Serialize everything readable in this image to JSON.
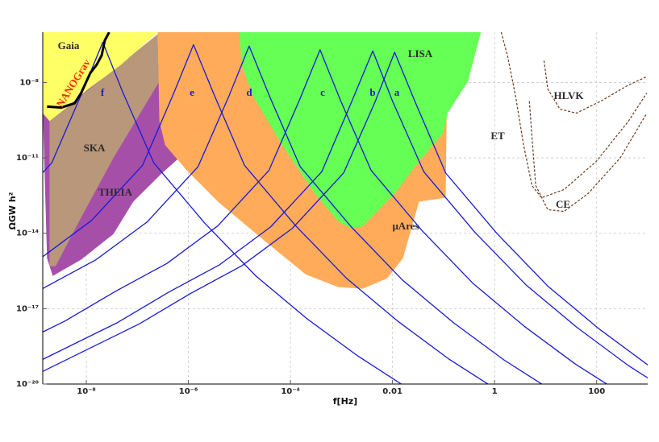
{
  "chart_data": {
    "type": "line",
    "xlabel": "f[Hz]",
    "ylabel": "ΩGW h²",
    "xscale": "log",
    "yscale": "log",
    "xlim": [
      1.4e-09,
      1000
    ],
    "ylim": [
      1e-20,
      1e-06
    ],
    "xticks": [
      {
        "value": 1e-08,
        "label": "10⁻⁸"
      },
      {
        "value": 1e-06,
        "label": "10⁻⁶"
      },
      {
        "value": 0.0001,
        "label": "10⁻⁴"
      },
      0.01,
      1,
      100
    ],
    "yticks": [
      {
        "value": 1e-20,
        "label": "10⁻²⁰"
      },
      {
        "value": 1e-17,
        "label": "10⁻¹⁷"
      },
      {
        "value": 1e-14,
        "label": "10⁻¹⁴"
      },
      {
        "value": 1e-11,
        "label": "10⁻¹¹"
      },
      {
        "value": 1e-08,
        "label": "10⁻⁸"
      }
    ],
    "grid": true,
    "regions": [
      {
        "name": "THEIA",
        "color": "#a64fa9",
        "x": [
          1.4e-09,
          2.5e-07,
          6.6e-07,
          3e-07,
          8.3e-08,
          3.4e-08,
          7.9e-09,
          2.2e-09,
          1.7e-09
        ],
        "y": [
          8.7e-10,
          2.2e-07,
          1e-11,
          2.4e-12,
          1.8e-13,
          9.3e-15,
          8.9e-16,
          2e-16,
          1e-15
        ]
      },
      {
        "name": "SKA",
        "color": "#b8977a",
        "x": [
          1.9e-09,
          2.5e-07,
          2.7e-07,
          3.4e-08,
          7.9e-09,
          2.5e-09,
          1.9e-09
        ],
        "y": [
          2.9e-10,
          8.3e-07,
          1.1e-08,
          1e-11,
          4.2e-14,
          4.9e-16,
          4.9e-16
        ]
      },
      {
        "name": "Gaia",
        "color": "#ffff66",
        "x": [
          1.4e-09,
          2.5e-07,
          4.8e-08,
          1.1e-08,
          3.8e-09,
          1.9e-09,
          1.4e-09
        ],
        "y": [
          1e-06,
          1e-06,
          5.1e-08,
          5.5e-09,
          8.7e-10,
          2.9e-10,
          6e-10
        ]
      },
      {
        "name": "μAres",
        "color": "#ffab5a",
        "x": [
          2.5e-07,
          0.12,
          0.11,
          0.033,
          0.016,
          0.0078,
          0.0026,
          0.00087,
          0.0002,
          3.3e-05,
          3.8e-06,
          8.9e-07,
          3.5e-07,
          2.7e-07
        ],
        "y": [
          1e-06,
          1e-06,
          2.6e-13,
          1.8e-13,
          1e-15,
          1.6e-16,
          6.2e-17,
          7.2e-17,
          2.3e-16,
          4.5e-15,
          1.8e-13,
          3.5e-12,
          3.2e-11,
          2.9e-10
        ]
      },
      {
        "name": "LISA",
        "color": "#66ff55",
        "x": [
          1e-05,
          0.54,
          0.3,
          0.12,
          0.098,
          0.033,
          0.011,
          0.0045,
          0.0026,
          0.0015,
          0.00087,
          0.0003,
          6.9e-05,
          1.9e-05,
          1.1e-05
        ],
        "y": [
          1e-06,
          1e-06,
          1.1e-08,
          6e-10,
          9.5e-11,
          7.2e-12,
          3.8e-13,
          6e-14,
          1.9e-14,
          1.6e-14,
          2.9e-14,
          3.8e-13,
          3.2e-11,
          2.6e-09,
          5.1e-08
        ]
      }
    ],
    "series": [
      {
        "name": "a",
        "color": "#1a1ad6",
        "x": [
          1.1e-09,
          1.1e-07,
          1.1e-06,
          1.1e-05,
          0.00011,
          0.0011,
          0.0045,
          0.011,
          0.028,
          0.11,
          1.1,
          11,
          110,
          1100
        ],
        "values": [
          2.5e-20,
          2.5e-18,
          4e-17,
          5e-16,
          1.6e-14,
          2.5e-12,
          1.6e-09,
          1.6e-07,
          1.6e-09,
          2.5e-12,
          1e-14,
          7.9e-17,
          1.6e-18,
          5e-20
        ]
      },
      {
        "name": "b",
        "color": "#1a1ad6",
        "x": [
          4.1e-10,
          4.1e-08,
          4.1e-07,
          4.1e-06,
          4.1e-05,
          0.00041,
          0.0016,
          0.0041,
          0.01,
          0.041,
          0.41,
          4.1,
          41,
          410,
          4100
        ],
        "values": [
          2.8e-20,
          2.8e-18,
          4.5e-17,
          5.6e-16,
          1.8e-14,
          2.8e-12,
          1.8e-09,
          1.8e-07,
          1.8e-09,
          2.8e-12,
          1.1e-14,
          8.9e-17,
          1.8e-18,
          5.6e-20,
          2.8e-21
        ]
      },
      {
        "name": "c",
        "color": "#1a1ad6",
        "x": [
          3.8e-11,
          3.8e-09,
          3.8e-08,
          3.8e-07,
          3.8e-06,
          3.8e-05,
          0.00015,
          0.00038,
          0.00095,
          0.0038,
          0.038,
          0.38,
          3.8,
          38,
          380
        ],
        "values": [
          3.2e-20,
          3.2e-18,
          5e-17,
          6.3e-16,
          2e-14,
          3.2e-12,
          2e-09,
          2e-07,
          2e-09,
          3.2e-12,
          1.26e-14,
          1e-16,
          2e-18,
          6.3e-20,
          3.2e-21
        ]
      },
      {
        "name": "d",
        "color": "#1a1ad6",
        "x": [
          1.55e-10,
          1.55e-09,
          1.55e-08,
          1.55e-07,
          1.55e-06,
          6.2e-06,
          1.55e-05,
          3.9e-05,
          0.000155,
          0.00155,
          0.0155,
          0.155,
          1.55,
          15.5
        ],
        "values": [
          4.5e-18,
          7.1e-17,
          8.9e-16,
          2.8e-14,
          4.5e-12,
          2.8e-09,
          2.8e-07,
          2.8e-09,
          4.5e-12,
          1.8e-14,
          1.4e-16,
          2.8e-18,
          8.9e-20,
          4.5e-21
        ]
      },
      {
        "name": "e",
        "color": "#1a1ad6",
        "x": [
          1.26e-09,
          1.26e-08,
          1.26e-07,
          5e-07,
          1.26e-06,
          3.2e-06,
          1.26e-05,
          0.000126,
          0.00126,
          0.0126,
          0.126,
          1.26
        ],
        "values": [
          1e-15,
          3.2e-14,
          5e-12,
          3.2e-09,
          3.2e-07,
          3.2e-09,
          5e-12,
          2e-14,
          1.6e-16,
          3.2e-18,
          1e-19,
          5e-21
        ]
      },
      {
        "name": "f",
        "color": "#1a1ad6",
        "x": [
          2.1e-10,
          2.1e-09,
          8.3e-09,
          2.1e-08,
          5.2e-08,
          2.1e-07,
          2.1e-06,
          2.1e-05,
          0.00021,
          0.0021,
          0.021
        ],
        "values": [
          4e-14,
          6.3e-12,
          4e-09,
          4e-07,
          4e-09,
          6.3e-12,
          2.5e-14,
          2e-16,
          4e-18,
          1.3e-19,
          6.3e-21
        ]
      },
      {
        "name": "ET",
        "color": "#6b3a1a",
        "dashed": true,
        "x": [
          1.35,
          1.8,
          2.6,
          3.7,
          5.4,
          8.3,
          23,
          98,
          420,
          960
        ],
        "values": [
          1e-06,
          1.1e-07,
          2.6e-09,
          3.2e-11,
          7.9e-13,
          2.6e-13,
          5.5e-13,
          7.2e-12,
          2.9e-10,
          3.8e-09
        ]
      },
      {
        "name": "HLVK",
        "color": "#6b3a1a",
        "dashed": true,
        "x": [
          9.3,
          11,
          19,
          40,
          120,
          420,
          960
        ],
        "values": [
          7.4e-08,
          5.5e-09,
          8.7e-10,
          6e-10,
          1.8e-09,
          7.9e-09,
          1.7e-08
        ]
      },
      {
        "name": "CE",
        "color": "#6b3a1a",
        "dashed": true,
        "x": [
          4.8,
          5.4,
          6.4,
          11,
          23,
          68,
          290,
          960
        ],
        "values": [
          1.8e-09,
          6.6e-11,
          7.9e-13,
          8.7e-14,
          7.4e-14,
          3.8e-13,
          1e-11,
          6e-10
        ]
      },
      {
        "name": "NANOGrav",
        "color": "#000000",
        "label_color": "#ff2a00",
        "x": [
          1.7e-09,
          3.2e-09,
          5.9e-09,
          7.9e-09,
          1.2e-08,
          1.6e-08,
          2e-08,
          2.3e-08,
          2.8e-08
        ],
        "values": [
          1.1e-09,
          1e-09,
          1.5e-09,
          3.8e-09,
          2.4e-08,
          5.1e-08,
          1.2e-07,
          4.7e-07,
          1e-06
        ]
      }
    ]
  }
}
